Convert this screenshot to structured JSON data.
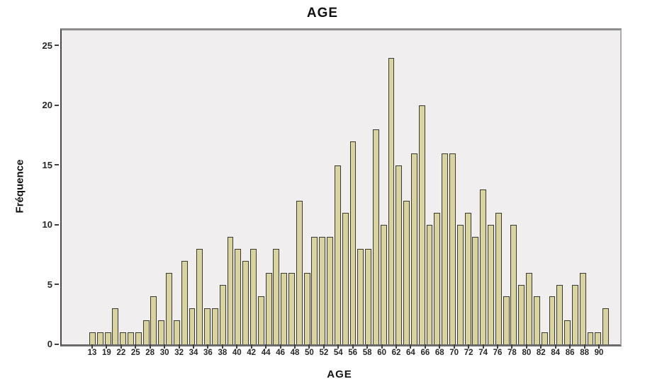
{
  "chart_data": {
    "type": "bar",
    "title": "AGE",
    "xlabel": "AGE",
    "ylabel": "Fréquence",
    "ylim": [
      0,
      26.3
    ],
    "y_ticks": [
      0,
      5,
      10,
      15,
      20,
      25
    ],
    "x_tick_labels": [
      "13",
      "19",
      "22",
      "25",
      "28",
      "30",
      "32",
      "34",
      "36",
      "38",
      "40",
      "42",
      "44",
      "46",
      "48",
      "50",
      "52",
      "54",
      "56",
      "58",
      "60",
      "62",
      "64",
      "66",
      "68",
      "70",
      "72",
      "74",
      "76",
      "78",
      "80",
      "82",
      "84",
      "86",
      "88",
      "90"
    ],
    "values": [
      1,
      1,
      1,
      3,
      1,
      1,
      1,
      2,
      4,
      2,
      6,
      2,
      7,
      3,
      8,
      3,
      3,
      5,
      9,
      8,
      7,
      8,
      4,
      6,
      8,
      6,
      6,
      12,
      6,
      9,
      9,
      9,
      15,
      11,
      17,
      8,
      8,
      18,
      10,
      24,
      15,
      12,
      16,
      20,
      10,
      11,
      16,
      16,
      10,
      11,
      9,
      13,
      10,
      11,
      4,
      10,
      5,
      6,
      4,
      1,
      4,
      5,
      2,
      5,
      6,
      1,
      1,
      3
    ],
    "grid": false,
    "legend": "none",
    "colors": {
      "bar_fill": "#d9d3a0",
      "bar_border": "#3a392f",
      "plot_bg": "#f0eeee",
      "frame_top": "#8c8c8c",
      "frame_left": "#4a4a4a",
      "frame_right": "#ababab",
      "axis_bottom": "#6b6b6b",
      "tick": "#3f3f3f",
      "text": "#262626"
    }
  }
}
